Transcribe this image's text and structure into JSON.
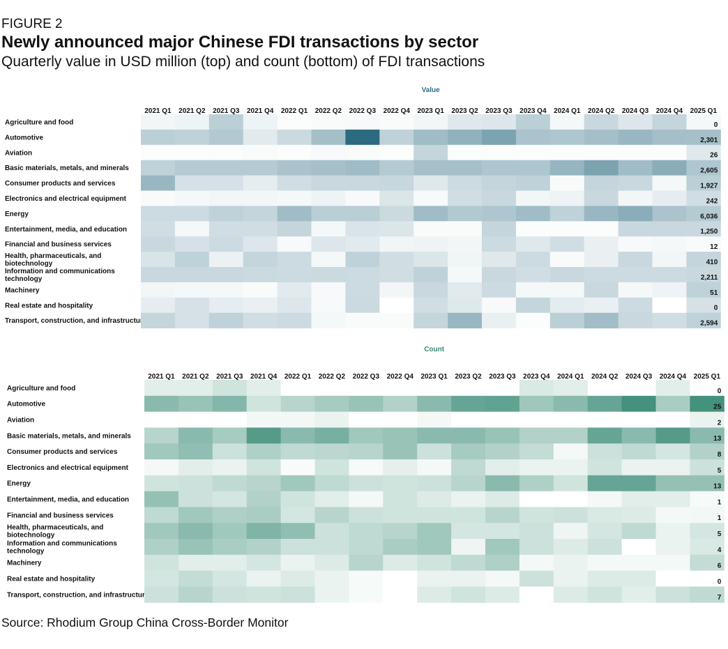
{
  "figure_label": "FIGURE 2",
  "title": "Newly announced major Chinese FDI transactions by sector",
  "subtitle": "Quarterly value in USD million (top) and count (bottom) of FDI transactions",
  "source": "Source: Rhodium Group China Cross-Border Monitor",
  "colors": {
    "value_base": "#2b6a80",
    "count_base": "#2a826a",
    "value_title": "#2f6e86",
    "count_title": "#3a8a76"
  },
  "chart_data": [
    {
      "type": "heatmap",
      "title": "Value",
      "x": [
        "2021 Q1",
        "2021 Q2",
        "2021 Q3",
        "2021 Q4",
        "2022 Q1",
        "2022 Q2",
        "2022 Q3",
        "2022 Q4",
        "2023 Q1",
        "2023 Q2",
        "2023 Q3",
        "2023 Q4",
        "2024 Q1",
        "2024 Q2",
        "2024 Q3",
        "2024 Q4",
        "2025 Q1"
      ],
      "y": [
        "Agriculture and food",
        "Automotive",
        "Aviation",
        "Basic materials, metals, and minerals",
        "Consumer products and services",
        "Electronics and electrical equipment",
        "Energy",
        "Entertainment, media, and education",
        "Financial and business services",
        "Health, pharmaceuticals, and biotechnology",
        "Information and communications technology",
        "Machinery",
        "Real estate and hospitality",
        "Transport, construction, and infrastructure"
      ],
      "intensity": [
        [
          0.06,
          0.08,
          0.32,
          0.08,
          0.02,
          0.03,
          0.04,
          0.03,
          0.06,
          0.15,
          0.16,
          0.32,
          0.05,
          0.26,
          0.16,
          0.28,
          0.05
        ],
        [
          0.32,
          0.3,
          0.36,
          0.14,
          0.25,
          0.43,
          1.0,
          0.3,
          0.45,
          0.52,
          0.62,
          0.4,
          0.38,
          0.43,
          0.48,
          0.43,
          0.42
        ],
        [
          0.02,
          0.02,
          0.02,
          0.03,
          0.02,
          0.04,
          0.03,
          0.02,
          0.28,
          0.02,
          0.02,
          0.02,
          0.02,
          0.02,
          0.02,
          0.02,
          0.15
        ],
        [
          0.3,
          0.35,
          0.35,
          0.35,
          0.4,
          0.42,
          0.45,
          0.35,
          0.42,
          0.42,
          0.38,
          0.38,
          0.5,
          0.62,
          0.45,
          0.55,
          0.38
        ],
        [
          0.48,
          0.2,
          0.2,
          0.12,
          0.22,
          0.26,
          0.26,
          0.27,
          0.15,
          0.24,
          0.28,
          0.3,
          0.03,
          0.28,
          0.26,
          0.05,
          0.32
        ],
        [
          0.03,
          0.05,
          0.06,
          0.06,
          0.05,
          0.08,
          0.04,
          0.17,
          0.04,
          0.22,
          0.26,
          0.06,
          0.08,
          0.26,
          0.06,
          0.12,
          0.22
        ],
        [
          0.24,
          0.24,
          0.3,
          0.28,
          0.45,
          0.33,
          0.33,
          0.25,
          0.45,
          0.36,
          0.38,
          0.45,
          0.3,
          0.48,
          0.55,
          0.4,
          0.35
        ],
        [
          0.22,
          0.05,
          0.22,
          0.22,
          0.28,
          0.05,
          0.18,
          0.17,
          0.03,
          0.03,
          0.28,
          0.02,
          0.02,
          0.02,
          0.26,
          0.26,
          0.26
        ],
        [
          0.26,
          0.2,
          0.24,
          0.16,
          0.04,
          0.16,
          0.14,
          0.07,
          0.08,
          0.06,
          0.24,
          0.15,
          0.22,
          0.1,
          0.04,
          0.05,
          0.03
        ],
        [
          0.18,
          0.3,
          0.09,
          0.28,
          0.24,
          0.05,
          0.3,
          0.22,
          0.17,
          0.07,
          0.15,
          0.24,
          0.03,
          0.1,
          0.26,
          0.06,
          0.28
        ],
        [
          0.26,
          0.26,
          0.26,
          0.25,
          0.24,
          0.25,
          0.24,
          0.22,
          0.3,
          0.05,
          0.26,
          0.22,
          0.26,
          0.24,
          0.24,
          0.24,
          0.26
        ],
        [
          0.06,
          0.05,
          0.05,
          0.03,
          0.14,
          0.04,
          0.24,
          0.06,
          0.26,
          0.14,
          0.24,
          0.05,
          0.05,
          0.26,
          0.05,
          0.08,
          0.3
        ],
        [
          0.12,
          0.2,
          0.12,
          0.1,
          0.16,
          0.04,
          0.25,
          0.0,
          0.22,
          0.15,
          0.04,
          0.28,
          0.13,
          0.1,
          0.24,
          0.0,
          0.2
        ],
        [
          0.28,
          0.2,
          0.3,
          0.22,
          0.24,
          0.05,
          0.03,
          0.03,
          0.28,
          0.48,
          0.1,
          0.02,
          0.32,
          0.44,
          0.26,
          0.22,
          0.3
        ]
      ],
      "values_2025_q1": [
        "0",
        "2,301",
        "26",
        "2,605",
        "1,927",
        "242",
        "6,036",
        "1,250",
        "12",
        "410",
        "2,211",
        "51",
        "0",
        "2,594"
      ]
    },
    {
      "type": "heatmap",
      "title": "Count",
      "x": [
        "2021 Q1",
        "2021 Q2",
        "2021 Q3",
        "2021 Q4",
        "2022 Q1",
        "2022 Q2",
        "2022 Q3",
        "2022 Q4",
        "2023 Q1",
        "2023 Q2",
        "2023 Q3",
        "2023 Q4",
        "2024 Q1",
        "2024 Q2",
        "2024 Q3",
        "2024 Q4",
        "2025 Q1"
      ],
      "y": [
        "Agriculture and food",
        "Automotive",
        "Aviation",
        "Basic materials, metals, and minerals",
        "Consumer products and services",
        "Electronics and electrical equipment",
        "Energy",
        "Entertainment, media, and education",
        "Financial and business services",
        "Health, pharmaceuticals, and biotechnology",
        "Information and communications technology",
        "Machinery",
        "Real estate and hospitality",
        "Transport, construction, and infrastructure"
      ],
      "intensity": [
        [
          0.14,
          0.14,
          0.22,
          0.14,
          0.0,
          0.0,
          0.0,
          0.0,
          0.0,
          0.0,
          0.0,
          0.18,
          0.14,
          0.0,
          0.0,
          0.14,
          0.0
        ],
        [
          0.55,
          0.48,
          0.58,
          0.22,
          0.34,
          0.42,
          0.48,
          0.36,
          0.55,
          0.72,
          0.74,
          0.45,
          0.55,
          0.72,
          0.88,
          0.4,
          0.88
        ],
        [
          0.0,
          0.0,
          0.0,
          0.06,
          0.06,
          0.1,
          0.0,
          0.0,
          0.05,
          0.0,
          0.0,
          0.0,
          0.0,
          0.0,
          0.0,
          0.0,
          0.1
        ],
        [
          0.34,
          0.55,
          0.42,
          0.8,
          0.55,
          0.64,
          0.44,
          0.48,
          0.55,
          0.55,
          0.48,
          0.36,
          0.36,
          0.72,
          0.55,
          0.8,
          0.55
        ],
        [
          0.44,
          0.52,
          0.24,
          0.38,
          0.3,
          0.32,
          0.34,
          0.48,
          0.24,
          0.42,
          0.36,
          0.28,
          0.05,
          0.24,
          0.3,
          0.2,
          0.36
        ],
        [
          0.05,
          0.14,
          0.1,
          0.22,
          0.03,
          0.22,
          0.04,
          0.12,
          0.05,
          0.3,
          0.14,
          0.1,
          0.1,
          0.22,
          0.1,
          0.1,
          0.24
        ],
        [
          0.22,
          0.24,
          0.3,
          0.34,
          0.44,
          0.3,
          0.24,
          0.22,
          0.24,
          0.34,
          0.55,
          0.38,
          0.22,
          0.72,
          0.72,
          0.5,
          0.5
        ],
        [
          0.5,
          0.24,
          0.2,
          0.36,
          0.22,
          0.14,
          0.05,
          0.22,
          0.16,
          0.1,
          0.16,
          0.0,
          0.0,
          0.05,
          0.14,
          0.14,
          0.04
        ],
        [
          0.3,
          0.44,
          0.38,
          0.4,
          0.2,
          0.34,
          0.24,
          0.22,
          0.22,
          0.22,
          0.34,
          0.22,
          0.24,
          0.18,
          0.16,
          0.05,
          0.06
        ],
        [
          0.44,
          0.55,
          0.44,
          0.6,
          0.52,
          0.24,
          0.3,
          0.34,
          0.44,
          0.2,
          0.2,
          0.24,
          0.08,
          0.2,
          0.3,
          0.1,
          0.2
        ],
        [
          0.38,
          0.48,
          0.4,
          0.36,
          0.24,
          0.24,
          0.3,
          0.4,
          0.44,
          0.08,
          0.44,
          0.24,
          0.16,
          0.24,
          0.0,
          0.1,
          0.18
        ],
        [
          0.22,
          0.14,
          0.14,
          0.2,
          0.1,
          0.16,
          0.34,
          0.16,
          0.22,
          0.3,
          0.38,
          0.05,
          0.1,
          0.05,
          0.05,
          0.05,
          0.28
        ],
        [
          0.2,
          0.28,
          0.2,
          0.1,
          0.16,
          0.1,
          0.04,
          0.0,
          0.1,
          0.1,
          0.05,
          0.24,
          0.1,
          0.16,
          0.16,
          0.0,
          0.0
        ],
        [
          0.24,
          0.34,
          0.24,
          0.22,
          0.24,
          0.1,
          0.04,
          0.0,
          0.16,
          0.22,
          0.16,
          0.0,
          0.16,
          0.22,
          0.14,
          0.24,
          0.3
        ]
      ],
      "values_2025_q1": [
        "0",
        "25",
        "2",
        "13",
        "8",
        "5",
        "13",
        "1",
        "1",
        "5",
        "4",
        "6",
        "0",
        "7"
      ]
    }
  ]
}
